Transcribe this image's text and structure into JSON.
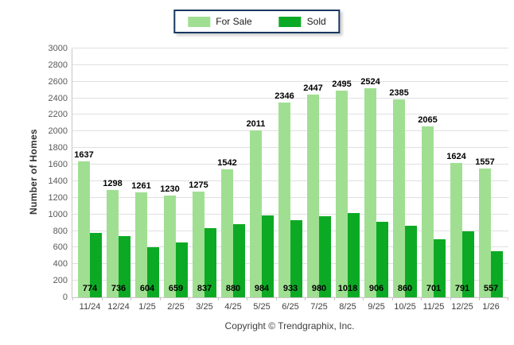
{
  "legend": {
    "for_sale_label": "For Sale",
    "sold_label": "Sold"
  },
  "footer": {
    "copyright": "Copyright © Trendgraphix, Inc."
  },
  "colors": {
    "for_sale": "#A0DF92",
    "sold": "#0CAA24",
    "legend_border": "#17375E",
    "gridline": "#E0E0E0",
    "axis": "#C6C6C6"
  },
  "chart_data": {
    "type": "bar",
    "title": "",
    "xlabel": "",
    "ylabel": "Number of Homes",
    "ylim": [
      0,
      3000
    ],
    "ytick_step": 200,
    "grid": true,
    "legend_position": "top-center",
    "categories": [
      "11/24",
      "12/24",
      "1/25",
      "2/25",
      "3/25",
      "4/25",
      "5/25",
      "6/25",
      "7/25",
      "8/25",
      "9/25",
      "10/25",
      "11/25",
      "12/25",
      "1/26"
    ],
    "series": [
      {
        "name": "For Sale",
        "color": "#A0DF92",
        "values": [
          1637,
          1298,
          1261,
          1230,
          1275,
          1542,
          2011,
          2346,
          2447,
          2495,
          2524,
          2385,
          2065,
          1624,
          1557
        ]
      },
      {
        "name": "Sold",
        "color": "#0CAA24",
        "values": [
          774,
          736,
          604,
          659,
          837,
          880,
          984,
          933,
          980,
          1018,
          906,
          860,
          701,
          791,
          557
        ]
      }
    ]
  }
}
